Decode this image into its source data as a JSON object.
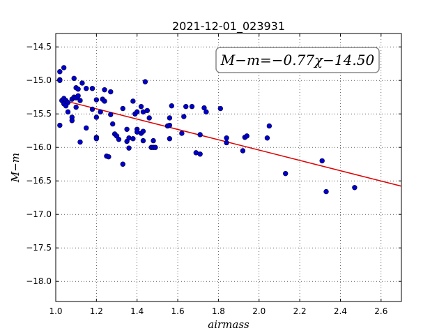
{
  "chart_data": {
    "type": "scatter",
    "title": "2021-12-01_023931",
    "xlabel": "airmass",
    "ylabel": "M−m",
    "xlim": [
      1.0,
      2.7
    ],
    "ylim": [
      -18.3,
      -14.3
    ],
    "y_inverted": true,
    "grid": true,
    "x_ticks": [
      1.0,
      1.2,
      1.4,
      1.6,
      1.8,
      2.0,
      2.2,
      2.4,
      2.6
    ],
    "x_tick_labels": [
      "1.0",
      "1.2",
      "1.4",
      "1.6",
      "1.8",
      "2.0",
      "2.2",
      "2.4",
      "2.6"
    ],
    "y_ticks": [
      -14.5,
      -15.0,
      -15.5,
      -16.0,
      -16.5,
      -17.0,
      -17.5,
      -18.0
    ],
    "y_tick_labels": [
      "−14.5",
      "−15.0",
      "−15.5",
      "−16.0",
      "−16.5",
      "−17.0",
      "−17.5",
      "−18.0"
    ],
    "annotation": "M−m=−0.77χ−14.50",
    "colors": {
      "points": "#0000cc",
      "fit_line": "#dd0000"
    },
    "fit": {
      "slope": -0.77,
      "intercept": -14.5
    },
    "points": [
      [
        1.02,
        -14.87
      ],
      [
        1.04,
        -14.81
      ],
      [
        1.02,
        -14.99
      ],
      [
        1.02,
        -15.0
      ],
      [
        1.03,
        -15.3
      ],
      [
        1.04,
        -15.27
      ],
      [
        1.05,
        -15.3
      ],
      [
        1.06,
        -15.33
      ],
      [
        1.04,
        -15.35
      ],
      [
        1.05,
        -15.38
      ],
      [
        1.06,
        -15.47
      ],
      [
        1.08,
        -15.28
      ],
      [
        1.09,
        -15.25
      ],
      [
        1.1,
        -15.26
      ],
      [
        1.11,
        -15.23
      ],
      [
        1.09,
        -14.97
      ],
      [
        1.1,
        -15.11
      ],
      [
        1.11,
        -15.13
      ],
      [
        1.13,
        -15.04
      ],
      [
        1.12,
        -15.3
      ],
      [
        1.1,
        -15.4
      ],
      [
        1.08,
        -15.55
      ],
      [
        1.08,
        -15.6
      ],
      [
        1.02,
        -15.67
      ],
      [
        1.15,
        -15.12
      ],
      [
        1.18,
        -15.12
      ],
      [
        1.18,
        -15.43
      ],
      [
        1.2,
        -15.29
      ],
      [
        1.2,
        -15.55
      ],
      [
        1.22,
        -15.47
      ],
      [
        1.23,
        -15.28
      ],
      [
        1.24,
        -15.31
      ],
      [
        1.24,
        -15.14
      ],
      [
        1.27,
        -15.17
      ],
      [
        1.27,
        -15.51
      ],
      [
        1.28,
        -15.65
      ],
      [
        1.15,
        -15.71
      ],
      [
        1.2,
        -15.85
      ],
      [
        1.2,
        -15.87
      ],
      [
        1.12,
        -15.92
      ],
      [
        1.29,
        -15.8
      ],
      [
        1.3,
        -15.83
      ],
      [
        1.31,
        -15.88
      ],
      [
        1.33,
        -15.42
      ],
      [
        1.33,
        -16.25
      ],
      [
        1.25,
        -16.13
      ],
      [
        1.26,
        -16.14
      ],
      [
        1.35,
        -15.73
      ],
      [
        1.35,
        -15.91
      ],
      [
        1.36,
        -16.01
      ],
      [
        1.36,
        -15.86
      ],
      [
        1.38,
        -15.31
      ],
      [
        1.38,
        -15.87
      ],
      [
        1.39,
        -15.5
      ],
      [
        1.4,
        -15.47
      ],
      [
        1.4,
        -15.73
      ],
      [
        1.4,
        -15.77
      ],
      [
        1.42,
        -15.39
      ],
      [
        1.42,
        -15.79
      ],
      [
        1.43,
        -15.47
      ],
      [
        1.43,
        -15.76
      ],
      [
        1.43,
        -15.9
      ],
      [
        1.44,
        -15.02
      ],
      [
        1.45,
        -15.45
      ],
      [
        1.46,
        -15.56
      ],
      [
        1.47,
        -16.0
      ],
      [
        1.48,
        -15.9
      ],
      [
        1.48,
        -16.0
      ],
      [
        1.49,
        -16.0
      ],
      [
        1.55,
        -15.68
      ],
      [
        1.56,
        -15.67
      ],
      [
        1.56,
        -15.56
      ],
      [
        1.56,
        -15.87
      ],
      [
        1.57,
        -15.38
      ],
      [
        1.62,
        -15.79
      ],
      [
        1.63,
        -15.54
      ],
      [
        1.64,
        -15.39
      ],
      [
        1.67,
        -15.39
      ],
      [
        1.69,
        -16.08
      ],
      [
        1.71,
        -15.81
      ],
      [
        1.71,
        -16.1
      ],
      [
        1.73,
        -15.41
      ],
      [
        1.74,
        -15.47
      ],
      [
        1.81,
        -15.42
      ],
      [
        1.84,
        -15.86
      ],
      [
        1.84,
        -15.93
      ],
      [
        1.92,
        -16.05
      ],
      [
        1.93,
        -15.85
      ],
      [
        1.94,
        -15.83
      ],
      [
        2.04,
        -15.86
      ],
      [
        2.05,
        -15.68
      ],
      [
        2.13,
        -16.39
      ],
      [
        2.31,
        -16.2
      ],
      [
        2.33,
        -16.66
      ],
      [
        2.47,
        -16.6
      ]
    ]
  }
}
